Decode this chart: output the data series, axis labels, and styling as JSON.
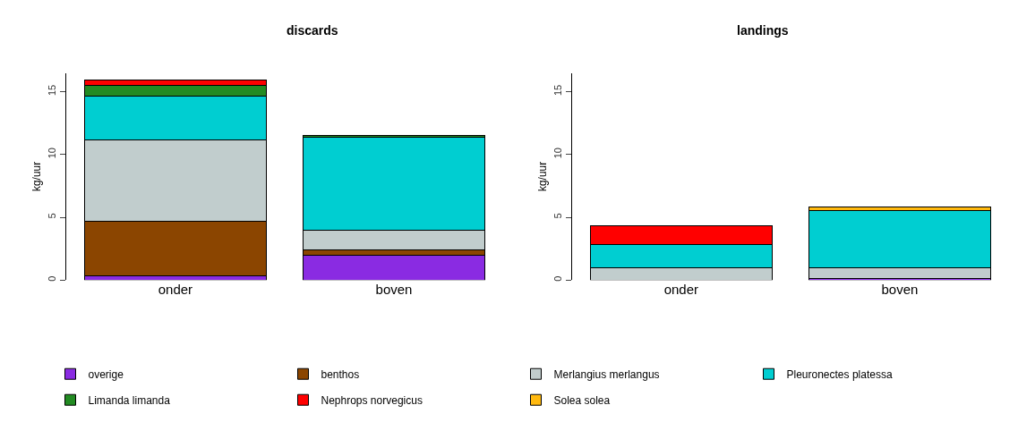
{
  "chart_data": [
    {
      "type": "bar",
      "title": "discards",
      "ylabel": "kg/uur",
      "categories": [
        "onder",
        "boven"
      ],
      "stacked": true,
      "ylim": [
        0,
        16.5
      ],
      "yticks": [
        0,
        5,
        10,
        15
      ],
      "legend": "bottom",
      "series": [
        {
          "name": "overige",
          "color": "#8a2be2",
          "values": [
            0.35,
            1.97
          ]
        },
        {
          "name": "benthos",
          "color": "#8b4500",
          "values": [
            4.33,
            0.4
          ]
        },
        {
          "name": "Merlangius merlangus",
          "color": "#c1cdcd",
          "values": [
            6.49,
            1.58
          ]
        },
        {
          "name": "Pleuronectes platessa",
          "color": "#00ced1",
          "values": [
            3.49,
            7.39
          ]
        },
        {
          "name": "Limanda limanda",
          "color": "#228b22",
          "values": [
            0.85,
            0.17
          ]
        },
        {
          "name": "Nephrops norvegicus",
          "color": "#ff0000",
          "values": [
            0.4,
            null
          ]
        }
      ]
    },
    {
      "type": "bar",
      "title": "landings",
      "ylabel": "kg/uur",
      "categories": [
        "onder",
        "boven"
      ],
      "stacked": true,
      "ylim": [
        0,
        16.5
      ],
      "yticks": [
        0,
        5,
        10,
        15
      ],
      "series": [
        {
          "name": "overige",
          "color": "#8a2be2",
          "values": [
            null,
            0.1
          ]
        },
        {
          "name": "Merlangius merlangus",
          "color": "#c1cdcd",
          "values": [
            0.95,
            0.91
          ]
        },
        {
          "name": "Pleuronectes platessa",
          "color": "#00ced1",
          "values": [
            1.89,
            4.49
          ]
        },
        {
          "name": "Solea solea",
          "color": "#ffb90f",
          "values": [
            null,
            0.33
          ]
        },
        {
          "name": "Nephrops norvegicus",
          "color": "#ff0000",
          "values": [
            1.51,
            null
          ]
        }
      ]
    }
  ]
}
